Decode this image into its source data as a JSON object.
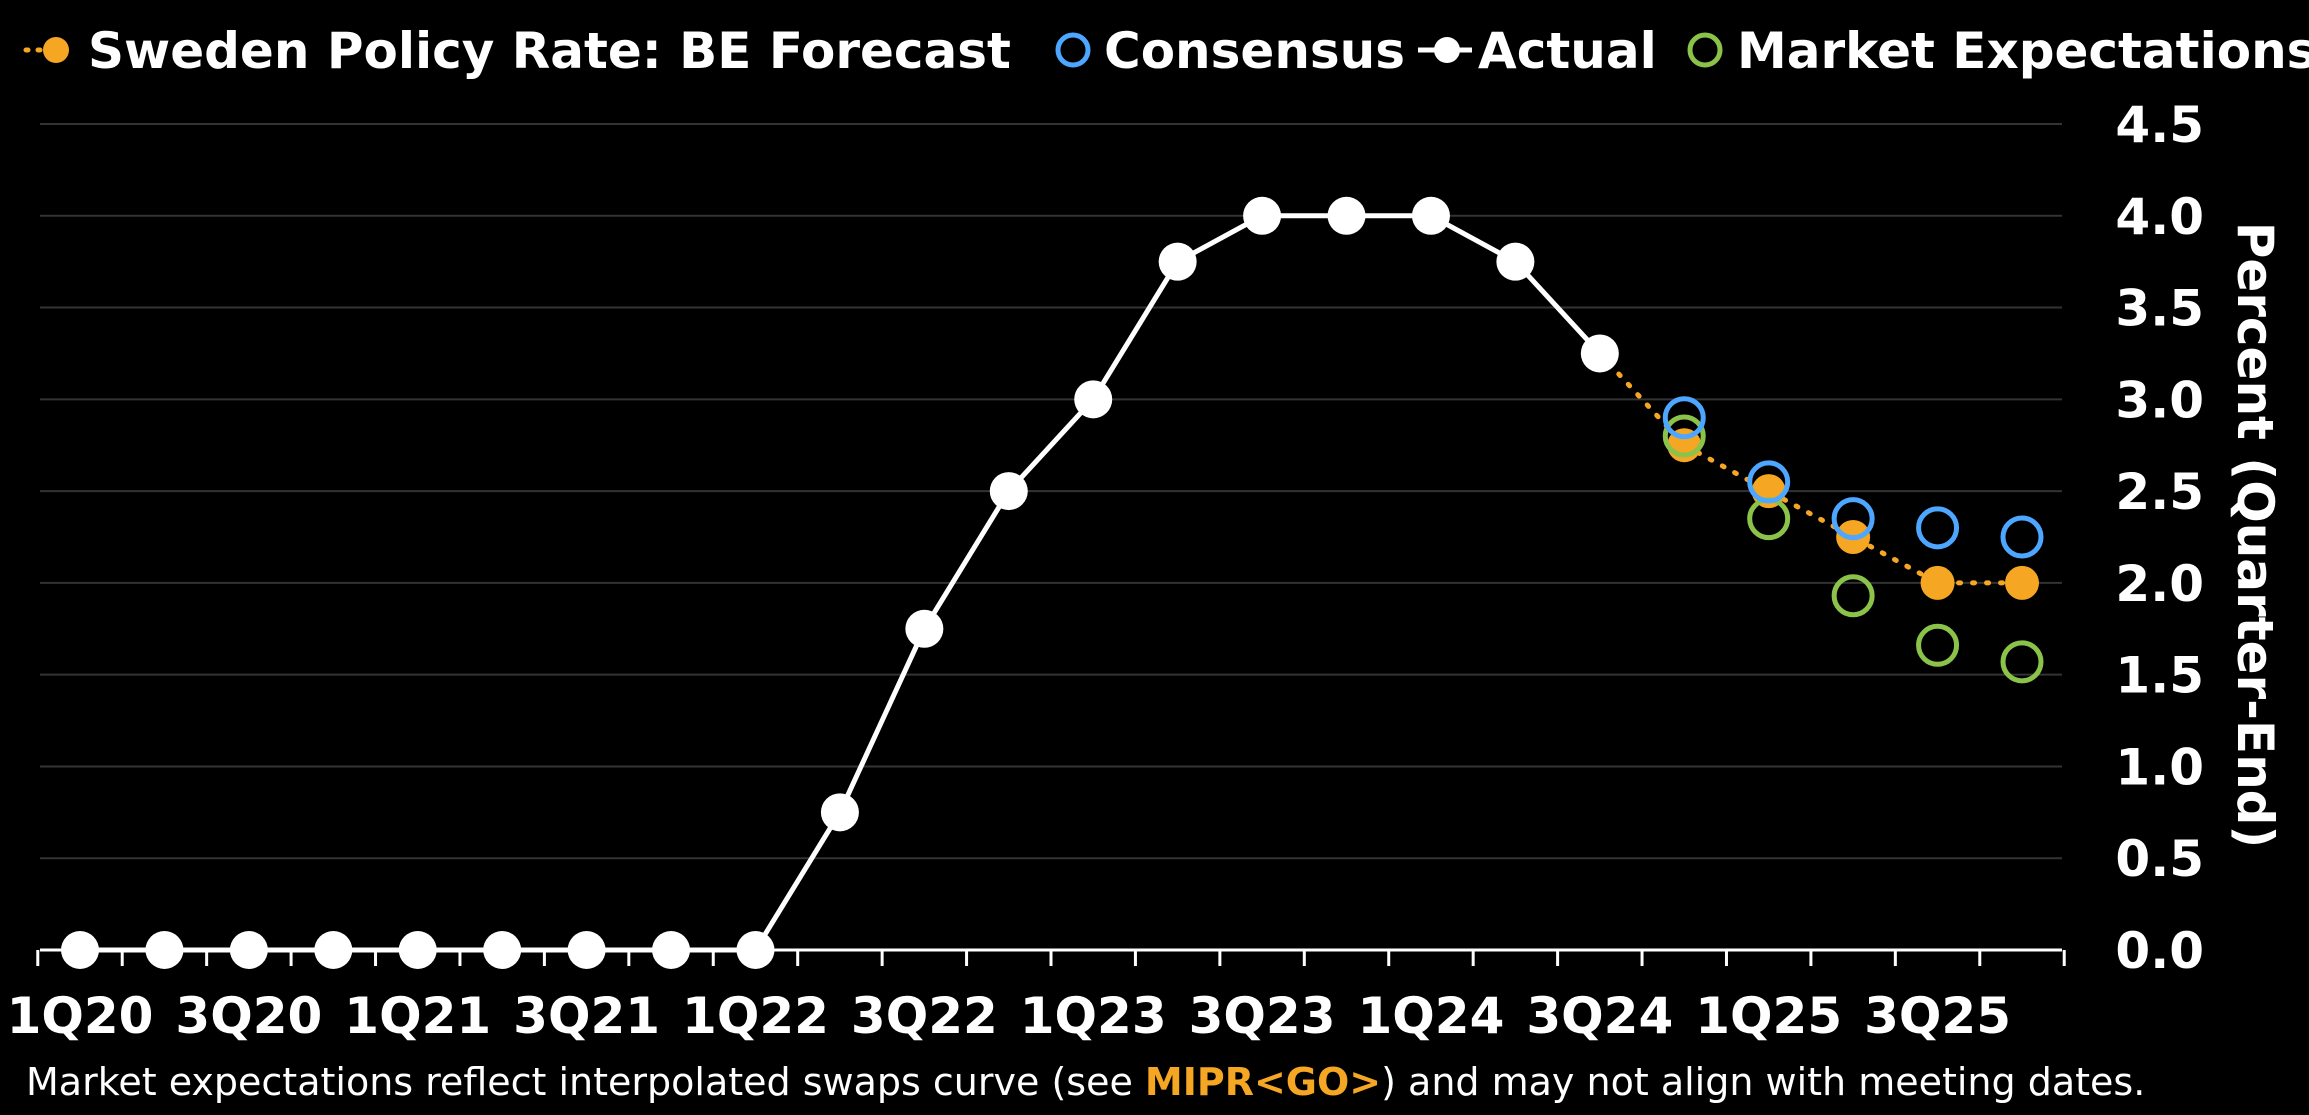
{
  "chart_data": {
    "type": "line",
    "legend": {
      "placement": "top",
      "items": [
        {
          "key": "forecast",
          "label": "Sweden Policy Rate: BE Forecast"
        },
        {
          "key": "consensus",
          "label": "Consensus"
        },
        {
          "key": "actual",
          "label": "Actual"
        },
        {
          "key": "market",
          "label": "Market Expectations"
        }
      ]
    },
    "ylabel": "Percent (Quarter-End)",
    "ylim": [
      0,
      4.5
    ],
    "yticks": [
      "0.0",
      "0.5",
      "1.0",
      "1.5",
      "2.0",
      "2.5",
      "3.0",
      "3.5",
      "4.0",
      "4.5"
    ],
    "y_axis_position": "right",
    "grid": true,
    "x": [
      "1Q20",
      "2Q20",
      "3Q20",
      "4Q20",
      "1Q21",
      "2Q21",
      "3Q21",
      "4Q21",
      "1Q22",
      "2Q22",
      "3Q22",
      "4Q22",
      "1Q23",
      "2Q23",
      "3Q23",
      "4Q23",
      "1Q24",
      "2Q24",
      "3Q24",
      "4Q24",
      "1Q25",
      "2Q25",
      "3Q25",
      "4Q25"
    ],
    "xtick_labels": [
      "1Q20",
      "3Q20",
      "1Q21",
      "3Q21",
      "1Q22",
      "3Q22",
      "1Q23",
      "3Q23",
      "1Q24",
      "3Q24",
      "1Q25",
      "3Q25"
    ],
    "series": [
      {
        "key": "actual",
        "name": "Actual",
        "color": "#ffffff",
        "x": [
          "1Q20",
          "2Q20",
          "3Q20",
          "4Q20",
          "1Q21",
          "2Q21",
          "3Q21",
          "4Q21",
          "1Q22",
          "2Q22",
          "3Q22",
          "4Q22",
          "1Q23",
          "2Q23",
          "3Q23",
          "4Q23",
          "1Q24",
          "2Q24",
          "3Q24"
        ],
        "values": [
          0,
          0,
          0,
          0,
          0,
          0,
          0,
          0,
          0,
          0.75,
          1.75,
          2.5,
          3.0,
          3.75,
          4.0,
          4.0,
          4.0,
          3.75,
          3.25
        ]
      },
      {
        "key": "forecast",
        "name": "Sweden Policy Rate: BE Forecast",
        "color": "#f5a623",
        "x": [
          "3Q24",
          "4Q24",
          "1Q25",
          "2Q25",
          "3Q25",
          "4Q25"
        ],
        "values": [
          3.25,
          2.75,
          2.5,
          2.25,
          2.0,
          2.0
        ]
      },
      {
        "key": "consensus",
        "name": "Consensus",
        "color": "#4da6ff",
        "x": [
          "4Q24",
          "1Q25",
          "2Q25",
          "3Q25",
          "4Q25"
        ],
        "values": [
          2.9,
          2.55,
          2.35,
          2.3,
          2.25
        ]
      },
      {
        "key": "market",
        "name": "Market Expectations",
        "color": "#8bc34a",
        "x": [
          "4Q24",
          "1Q25",
          "2Q25",
          "3Q25",
          "4Q25"
        ],
        "values": [
          2.8,
          2.35,
          1.93,
          1.66,
          1.57
        ]
      }
    ]
  },
  "footnote": {
    "before": "Market expectations reflect interpolated swaps curve (see ",
    "highlight": "MIPR<GO>",
    "after": ") and may not align with meeting dates."
  }
}
